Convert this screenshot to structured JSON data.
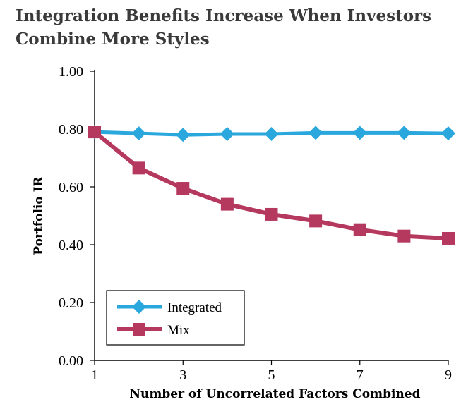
{
  "chart_data": {
    "type": "line",
    "title_line1": "Integration Benefits Increase When Investors",
    "title_line2": "Combine More Styles",
    "xlabel": "Number of Uncorrelated Factors Combined",
    "ylabel": "Portfolio IR",
    "xlim": [
      1,
      9
    ],
    "ylim": [
      0,
      1
    ],
    "x_ticks": [
      "1",
      "3",
      "5",
      "7",
      "9"
    ],
    "y_ticks": [
      "0.00",
      "0.20",
      "0.40",
      "0.60",
      "0.80",
      "1.00"
    ],
    "x": [
      1,
      2,
      3,
      4,
      5,
      6,
      7,
      8,
      9
    ],
    "series": [
      {
        "name": "Integrated",
        "values": [
          0.79,
          0.785,
          0.78,
          0.783,
          0.783,
          0.787,
          0.787,
          0.787,
          0.785
        ],
        "color": "#2aa7dc",
        "marker": "diamond"
      },
      {
        "name": "Mix",
        "values": [
          0.79,
          0.665,
          0.595,
          0.54,
          0.505,
          0.482,
          0.452,
          0.43,
          0.422
        ],
        "color": "#b5395f",
        "marker": "square"
      }
    ],
    "grid": false,
    "legend_position": "bottom-left"
  }
}
